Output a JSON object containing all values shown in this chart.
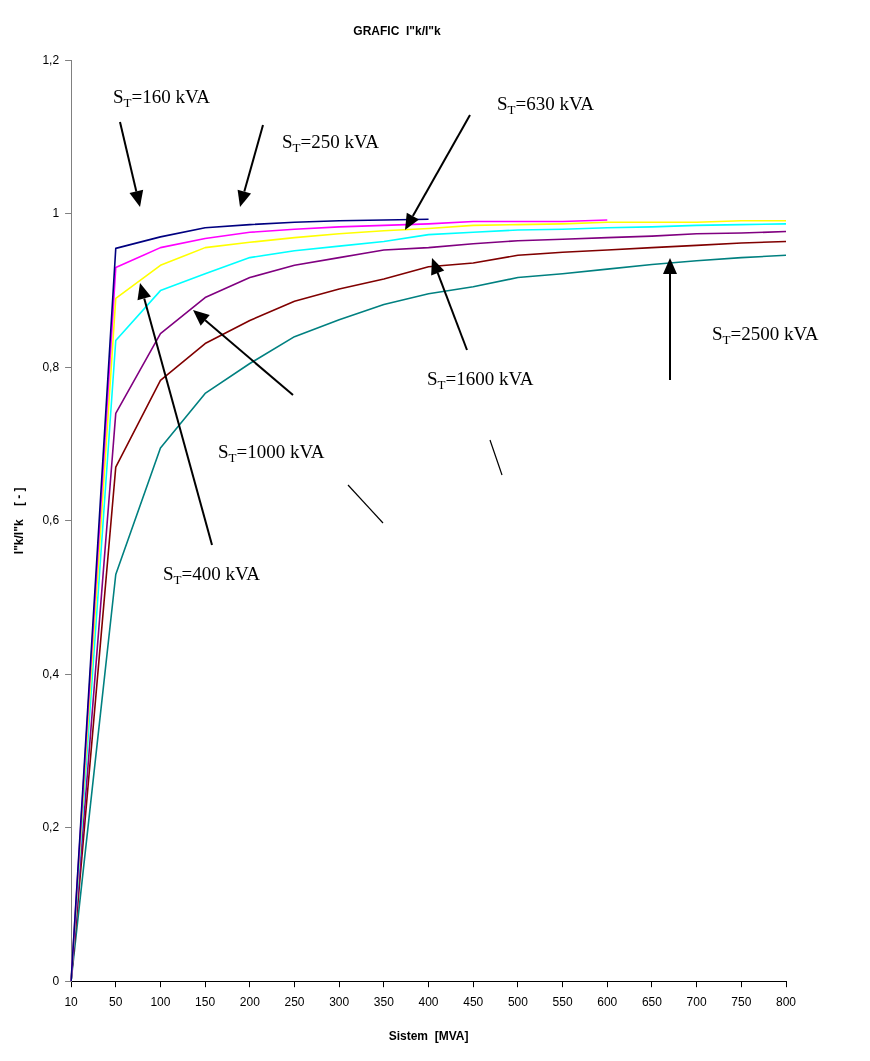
{
  "chart_data": {
    "type": "line",
    "title": "GRAFIC  I\"k/I\"k",
    "xlabel": "Sistem  [MVA]",
    "ylabel": "I\"k/I\"k    [ - ]",
    "categories": [
      "10",
      "50",
      "100",
      "150",
      "200",
      "250",
      "300",
      "350",
      "400",
      "450",
      "500",
      "550",
      "600",
      "650",
      "700",
      "750",
      "800"
    ],
    "series": [
      {
        "color": "#000080",
        "values": [
          0,
          0.955,
          0.97,
          0.982,
          0.986,
          0.989,
          0.991,
          0.992,
          0.993,
          null,
          null,
          null,
          null,
          null,
          null,
          null,
          null
        ]
      },
      {
        "color": "#ff00ff",
        "values": [
          0,
          0.93,
          0.956,
          0.968,
          0.976,
          0.98,
          0.983,
          0.985,
          0.987,
          0.99,
          0.99,
          0.99,
          0.992,
          null,
          null,
          null,
          null
        ]
      },
      {
        "color": "#ffff00",
        "values": [
          0,
          0.89,
          0.933,
          0.956,
          0.963,
          0.969,
          0.974,
          0.978,
          0.981,
          0.985,
          0.986,
          0.987,
          0.989,
          0.989,
          0.989,
          0.991,
          0.991
        ]
      },
      {
        "color": "#00ffff",
        "values": [
          0,
          0.835,
          0.9,
          0.922,
          0.943,
          0.952,
          0.958,
          0.964,
          0.973,
          0.976,
          0.979,
          0.98,
          0.982,
          0.983,
          0.985,
          0.986,
          0.987
        ]
      },
      {
        "color": "#800080",
        "values": [
          0,
          0.74,
          0.844,
          0.891,
          0.917,
          0.933,
          0.943,
          0.953,
          0.956,
          0.961,
          0.965,
          0.967,
          0.969,
          0.971,
          0.974,
          0.975,
          0.977
        ]
      },
      {
        "color": "#800000",
        "values": [
          0,
          0.67,
          0.783,
          0.831,
          0.861,
          0.886,
          0.902,
          0.915,
          0.931,
          0.936,
          0.946,
          0.95,
          0.953,
          0.956,
          0.959,
          0.962,
          0.964
        ]
      },
      {
        "color": "#008080",
        "values": [
          0,
          0.53,
          0.695,
          0.766,
          0.805,
          0.84,
          0.862,
          0.882,
          0.896,
          0.905,
          0.917,
          0.922,
          0.928,
          0.934,
          0.939,
          0.943,
          0.946
        ]
      }
    ],
    "ylim": [
      0,
      1.2
    ],
    "yticks": [
      0,
      {
        "value": 0.2,
        "label": "0,2"
      },
      {
        "value": 0.4,
        "label": "0,4"
      },
      {
        "value": 0.6,
        "label": "0,6"
      },
      {
        "value": 0.8,
        "label": "0,8"
      },
      1,
      {
        "value": 1.2,
        "label": "1,2"
      }
    ],
    "grid": false,
    "annotations": [
      "S$_{T}$=160 kVA",
      "S$_{T}$=250 kVA",
      "S$_{T}$=630 kVA",
      "S$_{T}$=400 kVA",
      "S$_{T}$=1000 kVA",
      "S$_{T}$=1600 kVA",
      "S$_{T}$=2500 kVA"
    ]
  }
}
